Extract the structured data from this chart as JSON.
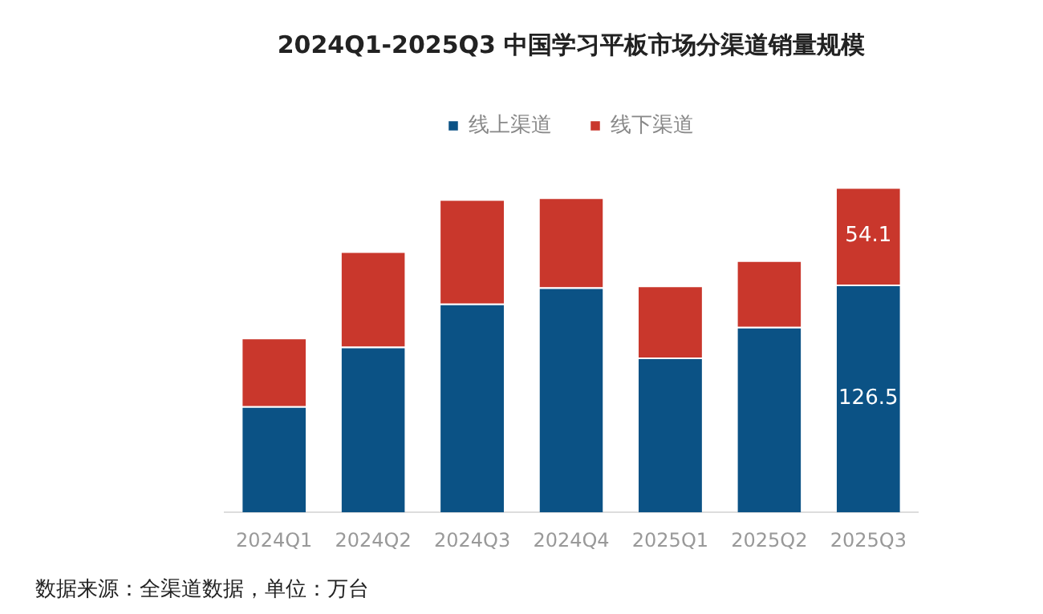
{
  "chart_data": {
    "type": "bar",
    "title": "2024Q1-2025Q3 中国学习平板市场分渠道销量规模",
    "categories": [
      "2024Q1",
      "2024Q2",
      "2024Q3",
      "2024Q4",
      "2025Q1",
      "2025Q2",
      "2025Q3"
    ],
    "stacked": true,
    "legend": "top",
    "series": [
      {
        "name": "线上渠道",
        "color": "#0b5285",
        "values": [
          59,
          92,
          116,
          125,
          86,
          103,
          126.5
        ],
        "value_labels": [
          null,
          null,
          null,
          null,
          null,
          null,
          "126.5"
        ]
      },
      {
        "name": "线下渠道",
        "color": "#c9372c",
        "values": [
          38,
          53,
          58,
          50,
          40,
          37,
          54.1
        ],
        "value_labels": [
          null,
          null,
          null,
          null,
          null,
          null,
          "54.1"
        ]
      }
    ],
    "annotations": [
      "数据来源：全渠道数据，单位：万台"
    ]
  }
}
